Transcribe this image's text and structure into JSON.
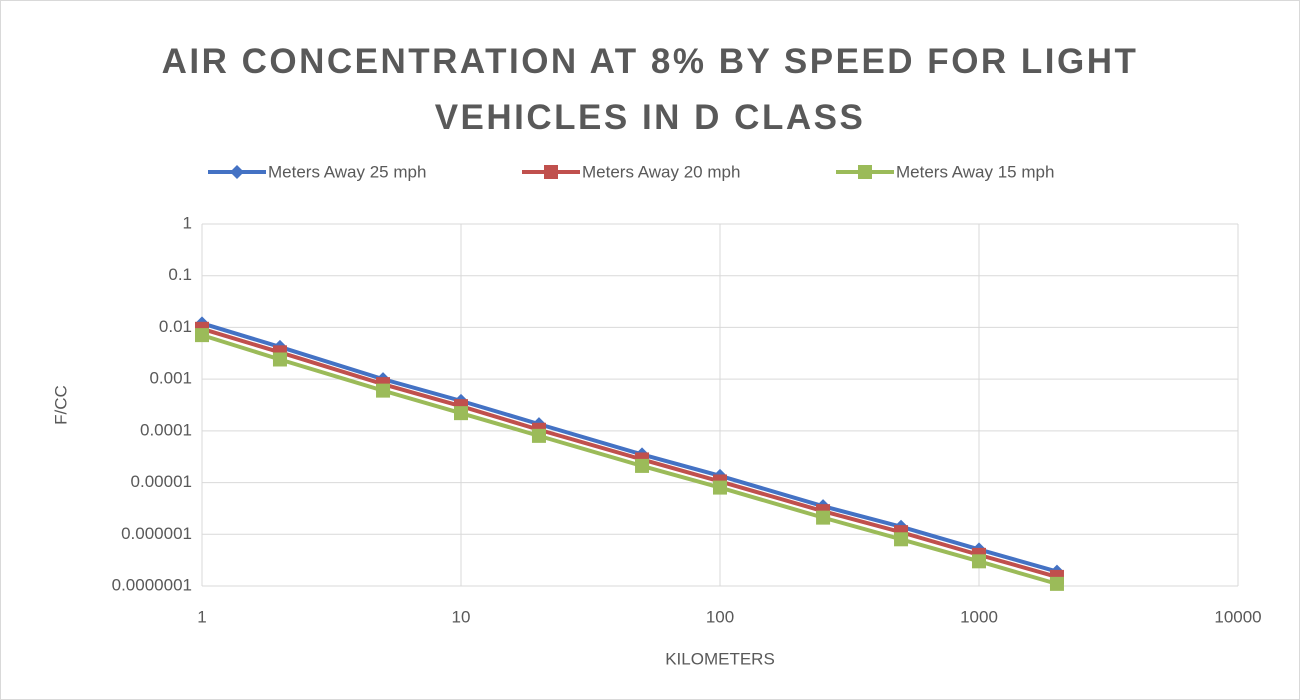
{
  "chart_data": {
    "type": "line",
    "title": "AIR CONCENTRATION AT 8% BY SPEED FOR LIGHT VEHICLES IN D CLASS",
    "x_label": "KILOMETERS",
    "y_label": "F/CC",
    "x": [
      1,
      2,
      5,
      10,
      20,
      50,
      100,
      250,
      500,
      1000,
      2000
    ],
    "series": [
      {
        "name": "Meters Away 25 mph",
        "color": "#4472c4",
        "marker": "diamond",
        "values": [
          0.012,
          0.0042,
          0.001,
          0.00038,
          0.000135,
          3.5e-05,
          1.35e-05,
          3.5e-06,
          1.4e-06,
          5.1e-07,
          1.9e-07
        ]
      },
      {
        "name": "Meters Away 20 mph",
        "color": "#c0504d",
        "marker": "square",
        "values": [
          0.0094,
          0.0033,
          0.0008,
          0.0003,
          0.000105,
          2.8e-05,
          1.05e-05,
          2.8e-06,
          1.1e-06,
          4e-07,
          1.5e-07
        ]
      },
      {
        "name": "Meters Away 15 mph",
        "color": "#9bbb59",
        "marker": "square",
        "values": [
          0.0071,
          0.0024,
          0.0006,
          0.00022,
          8e-05,
          2.1e-05,
          8e-06,
          2.1e-06,
          8e-07,
          3e-07,
          1.1e-07
        ]
      }
    ],
    "xlim": [
      1,
      10000
    ],
    "xticks": [
      1,
      10,
      100,
      1000,
      10000
    ],
    "ylim": [
      1e-07,
      1
    ],
    "yticks": [
      {
        "value": 1e-07,
        "label": "0.0000001"
      },
      1e-06,
      1e-05,
      0.0001,
      0.001,
      0.01,
      0.1,
      1
    ],
    "xscale": "log",
    "yscale": "log",
    "grid": true,
    "legend": "top"
  }
}
